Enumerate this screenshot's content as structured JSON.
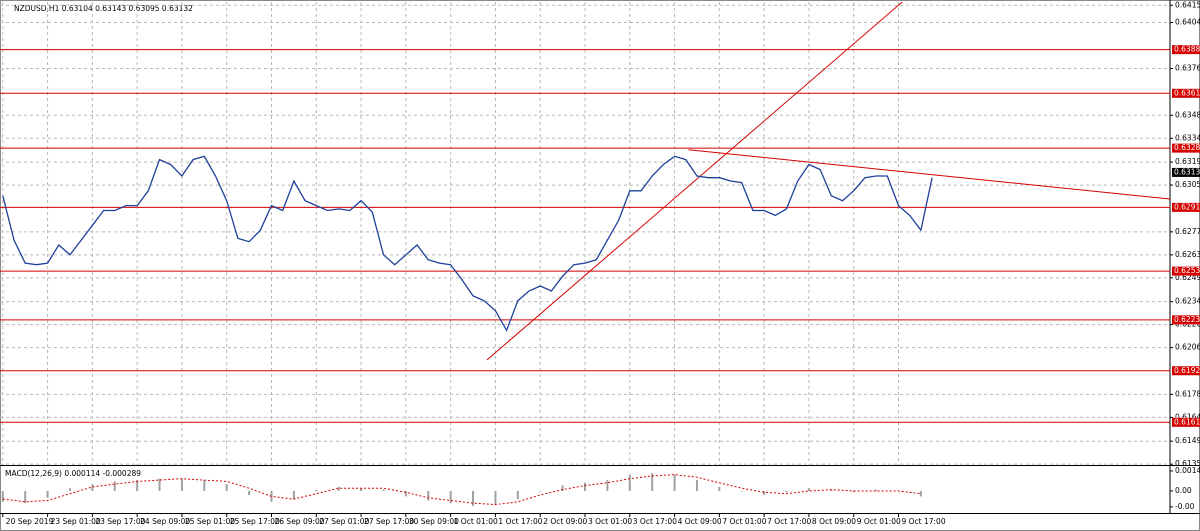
{
  "chart_data": [
    {
      "type": "line",
      "title": "NZDUSD,H1  0.63104 0.63143 0.63095 0.63132",
      "color": "#1f3f9a",
      "level_color": "#d40000",
      "grid": true,
      "xlim": [
        -1,
        417
      ],
      "ylim": [
        0.6135,
        0.6417
      ],
      "x": [
        0,
        4,
        8,
        12,
        16,
        20,
        24,
        28,
        32,
        36,
        40,
        44,
        48,
        52,
        56,
        60,
        64,
        68,
        72,
        76,
        80,
        84,
        88,
        92,
        96,
        100,
        104,
        108,
        112,
        116,
        120,
        124,
        128,
        132,
        136,
        140,
        144,
        148,
        152,
        156,
        160,
        164,
        168,
        172,
        176,
        180,
        184,
        188,
        192,
        196,
        200,
        204,
        208,
        212,
        216,
        220,
        224,
        228,
        232,
        236,
        240,
        244,
        248,
        252,
        256,
        260,
        264,
        268,
        272,
        276,
        280,
        284,
        288,
        292,
        296,
        300,
        304,
        308,
        312,
        316,
        320,
        324,
        328,
        332
      ],
      "series": [
        {
          "values": [
            0.6299,
            0.6272,
            0.6258,
            0.6257,
            0.6258,
            0.6269,
            0.6263,
            0.6272,
            0.6281,
            0.629,
            0.629,
            0.6293,
            0.6293,
            0.6302,
            0.6321,
            0.6318,
            0.6311,
            0.6321,
            0.6323,
            0.6311,
            0.6296,
            0.6273,
            0.6271,
            0.6278,
            0.6293,
            0.629,
            0.6308,
            0.6296,
            0.6293,
            0.629,
            0.6291,
            0.629,
            0.6296,
            0.6289,
            0.6263,
            0.6257,
            0.6263,
            0.6269,
            0.626,
            0.6258,
            0.6257,
            0.6248,
            0.6238,
            0.6235,
            0.6229,
            0.6217,
            0.6235,
            0.6241,
            0.6244,
            0.6241,
            0.625,
            0.6257,
            0.6258,
            0.626,
            0.6272,
            0.6284,
            0.6302,
            0.6302,
            0.6311,
            0.6318,
            0.6323,
            0.6321,
            0.6311,
            0.631,
            0.631,
            0.6308,
            0.6307,
            0.629,
            0.629,
            0.6287,
            0.6291,
            0.6308,
            0.6318,
            0.6315,
            0.6299,
            0.6296,
            0.6302,
            0.631,
            0.6311,
            0.6311,
            0.6293,
            0.6287,
            0.6278,
            0.631
          ]
        }
      ],
      "levels": [
        {
          "value": 0.6388,
          "label": "0.63880"
        },
        {
          "value": 0.63614,
          "label": "0.63614"
        },
        {
          "value": 0.6328,
          "label": "0.63280"
        },
        {
          "value": 0.62919,
          "label": "0.62919"
        },
        {
          "value": 0.62531,
          "label": "0.62531"
        },
        {
          "value": 0.62234,
          "label": "0.62234"
        },
        {
          "value": 0.61924,
          "label": "0.61924"
        },
        {
          "value": 0.6161,
          "label": "0.61610"
        }
      ],
      "trendlines": [
        {
          "x": [
            173,
            322
          ],
          "values": [
            0.6199,
            0.6418
          ]
        },
        {
          "x": [
            245,
            417
          ],
          "values": [
            0.6327,
            0.6297
          ]
        }
      ],
      "last_price": {
        "value": 0.63132,
        "label": "0.63132"
      },
      "yticks": [
        {
          "value": 0.6415,
          "label": "0.64150"
        },
        {
          "value": 0.64045,
          "label": "0.64045"
        },
        {
          "value": 0.63765,
          "label": "0.63765"
        },
        {
          "value": 0.6348,
          "label": "0.63480"
        },
        {
          "value": 0.6334,
          "label": "0.63340"
        },
        {
          "value": 0.63195,
          "label": "0.63195"
        },
        {
          "value": 0.63055,
          "label": "0.63055"
        },
        {
          "value": 0.6277,
          "label": "0.62770"
        },
        {
          "value": 0.6263,
          "label": "0.62630"
        },
        {
          "value": 0.6249,
          "label": "0.62490"
        },
        {
          "value": 0.62345,
          "label": "0.62345"
        },
        {
          "value": 0.62205,
          "label": "0.62205"
        },
        {
          "value": 0.62065,
          "label": "0.62065"
        },
        {
          "value": 0.6178,
          "label": "0.61780"
        },
        {
          "value": 0.6164,
          "label": "0.61640"
        },
        {
          "value": 0.61495,
          "label": "0.61495"
        },
        {
          "value": 0.61355,
          "label": "0.61355"
        }
      ],
      "xticks": [
        {
          "value": 0,
          "label": "20 Sep 2019"
        },
        {
          "value": 16,
          "label": "23 Sep 01:00"
        },
        {
          "value": 32,
          "label": "23 Sep 17:00"
        },
        {
          "value": 48,
          "label": "24 Sep 09:00"
        },
        {
          "value": 64,
          "label": "25 Sep 01:00"
        },
        {
          "value": 80,
          "label": "25 Sep 17:00"
        },
        {
          "value": 96,
          "label": "26 Sep 09:00"
        },
        {
          "value": 112,
          "label": "27 Sep 01:00"
        },
        {
          "value": 128,
          "label": "27 Sep 17:00"
        },
        {
          "value": 144,
          "label": "30 Sep 09:00"
        },
        {
          "value": 160,
          "label": "1 Oct 01:00"
        },
        {
          "value": 176,
          "label": "1 Oct 17:00"
        },
        {
          "value": 192,
          "label": "2 Oct 09:00"
        },
        {
          "value": 208,
          "label": "3 Oct 01:00"
        },
        {
          "value": 224,
          "label": "3 Oct 17:00"
        },
        {
          "value": 240,
          "label": "4 Oct 09:00"
        },
        {
          "value": 256,
          "label": "7 Oct 01:00"
        },
        {
          "value": 272,
          "label": "7 Oct 17:00"
        },
        {
          "value": 288,
          "label": "8 Oct 09:00"
        },
        {
          "value": 304,
          "label": "9 Oct 01:00"
        },
        {
          "value": 320,
          "label": "9 Oct 17:00"
        }
      ]
    },
    {
      "type": "macd",
      "title": "MACD(12,26,9) 0.000114 -0.000289",
      "xlim": [
        -1,
        417
      ],
      "ylim": [
        -0.00162,
        0.00176
      ],
      "yticks": [
        {
          "value": 0.00147,
          "label": "0.00147"
        },
        {
          "value": 0,
          "label": "0.00"
        },
        {
          "value": -0.00117,
          "label": "-0.00"
        }
      ],
      "x": [
        0,
        8,
        16,
        24,
        32,
        40,
        48,
        56,
        64,
        72,
        80,
        88,
        96,
        104,
        112,
        120,
        128,
        136,
        144,
        152,
        160,
        168,
        176,
        184,
        192,
        200,
        208,
        216,
        224,
        232,
        240,
        248,
        256,
        264,
        272,
        280,
        288,
        296,
        304,
        312,
        320,
        328
      ],
      "series": [
        {
          "color": "#a0a0a0",
          "values": [
            -0.0008,
            -0.0009,
            -0.0005,
            0.0002,
            0.0005,
            0.0007,
            0.0008,
            0.0009,
            0.0009,
            0.0008,
            0.0005,
            -0.0003,
            -0.0008,
            -0.0006,
            0.0001,
            0.0003,
            0.0002,
            0.0001,
            -0.0004,
            -0.0007,
            -0.0009,
            -0.0011,
            -0.001,
            -0.0006,
            0,
            0.0004,
            0.0006,
            0.0008,
            0.0012,
            0.0013,
            0.0012,
            0.0008,
            0.0003,
            0,
            -0.0003,
            -0.0001,
            0.0002,
            0.0001,
            -0.0001,
            0.0001,
            0,
            -0.0004
          ]
        },
        {
          "color": "#d40000",
          "values": [
            -0.0006,
            -0.0008,
            -0.0007,
            -0.0002,
            0.0003,
            0.0005,
            0.0007,
            0.0008,
            0.0009,
            0.0008,
            0.0007,
            0.0002,
            -0.0004,
            -0.0006,
            -0.0002,
            0.0002,
            0.0002,
            0.0002,
            -0.0001,
            -0.0005,
            -0.0007,
            -0.0009,
            -0.001,
            -0.0008,
            -0.0003,
            0.0001,
            0.0004,
            0.0006,
            0.0009,
            0.0011,
            0.0012,
            0.001,
            0.0006,
            0.0002,
            -0.0001,
            -0.0002,
            0,
            0.0001,
            0,
            0,
            0,
            -0.0002
          ]
        }
      ]
    }
  ]
}
